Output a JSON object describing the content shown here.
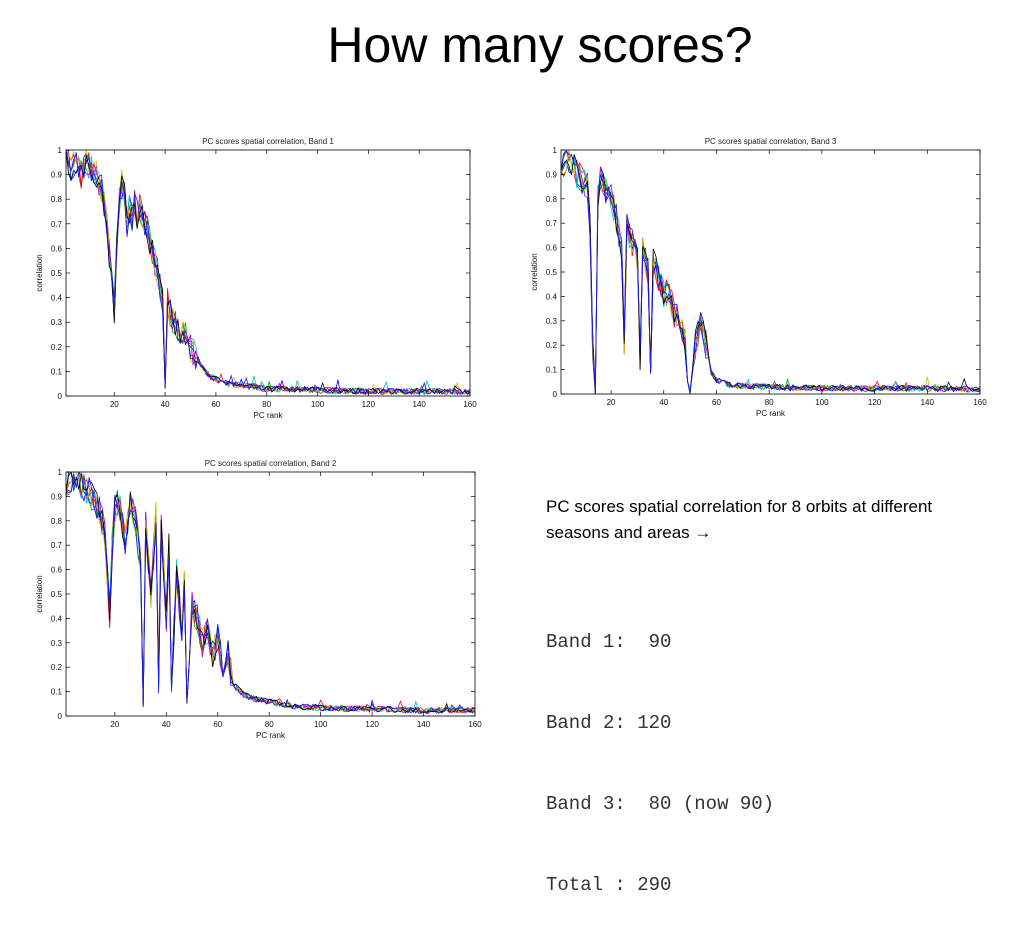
{
  "slide": {
    "title": "How many scores?",
    "caption": "PC scores spatial correlation for 8 orbits at different seasons and areas",
    "caption_arrow": "→",
    "bands": [
      {
        "label": "Band 1",
        "value": " 90",
        "note": ""
      },
      {
        "label": "Band 2",
        "value": "120",
        "note": ""
      },
      {
        "label": "Band 3",
        "value": " 80",
        "note": "(now 90)"
      },
      {
        "label": "Total ",
        "value": "290",
        "note": ""
      }
    ]
  },
  "chart_data": [
    {
      "type": "line",
      "title": "PC scores spatial correlation, Band 1",
      "xlabel": "PC rank",
      "ylabel": "correlation",
      "xlim": [
        1,
        160
      ],
      "ylim": [
        0,
        1
      ],
      "xticks": [
        20,
        40,
        60,
        80,
        100,
        120,
        140,
        160
      ],
      "yticks": [
        0,
        0.1,
        0.2,
        0.3,
        0.4,
        0.5,
        0.6,
        0.7,
        0.8,
        0.9,
        1
      ],
      "series_count": 8,
      "series_colors": [
        "#0000ff",
        "#00a000",
        "#ff0000",
        "#00bfbf",
        "#bf00bf",
        "#bfbf00",
        "#000000",
        "#1a1aff"
      ],
      "reference": {
        "x": [
          1,
          3,
          5,
          7,
          9,
          11,
          13,
          15,
          17,
          18,
          19,
          20,
          21,
          22,
          23,
          24,
          25,
          26,
          27,
          28,
          29,
          30,
          31,
          32,
          33,
          34,
          35,
          36,
          37,
          38,
          39,
          40,
          41,
          42,
          44,
          46,
          48,
          50,
          52,
          54,
          56,
          58,
          60,
          62,
          65,
          70,
          75,
          80,
          90,
          100,
          120,
          140,
          160
        ],
        "y": [
          0.98,
          0.93,
          0.95,
          0.9,
          0.95,
          0.93,
          0.9,
          0.84,
          0.7,
          0.58,
          0.5,
          0.35,
          0.62,
          0.8,
          0.86,
          0.84,
          0.7,
          0.76,
          0.72,
          0.79,
          0.74,
          0.77,
          0.73,
          0.71,
          0.68,
          0.63,
          0.58,
          0.54,
          0.5,
          0.45,
          0.4,
          0.03,
          0.38,
          0.33,
          0.3,
          0.27,
          0.24,
          0.2,
          0.16,
          0.12,
          0.09,
          0.07,
          0.06,
          0.05,
          0.04,
          0.035,
          0.03,
          0.02,
          0.02,
          0.015,
          0.01,
          0.01,
          0.01
        ]
      }
    },
    {
      "type": "line",
      "title": "PC scores spatial correlation, Band 2",
      "xlabel": "PC rank",
      "ylabel": "correlation",
      "xlim": [
        1,
        160
      ],
      "ylim": [
        0,
        1
      ],
      "xticks": [
        20,
        40,
        60,
        80,
        100,
        120,
        140,
        160
      ],
      "yticks": [
        0,
        0.1,
        0.2,
        0.3,
        0.4,
        0.5,
        0.6,
        0.7,
        0.8,
        0.9,
        1
      ],
      "series_count": 8,
      "series_colors": [
        "#0000ff",
        "#00a000",
        "#ff0000",
        "#00bfbf",
        "#bf00bf",
        "#bfbf00",
        "#000000",
        "#1a1aff"
      ],
      "reference": {
        "x": [
          1,
          4,
          7,
          10,
          12,
          14,
          16,
          17,
          18,
          19,
          20,
          21,
          22,
          24,
          26,
          28,
          30,
          31,
          32,
          34,
          36,
          37,
          38,
          40,
          41,
          42,
          44,
          46,
          47,
          48,
          50,
          52,
          54,
          56,
          58,
          60,
          62,
          64,
          66,
          70,
          75,
          80,
          85,
          90,
          100,
          120,
          140,
          160
        ],
        "y": [
          0.96,
          0.97,
          0.95,
          0.92,
          0.88,
          0.84,
          0.76,
          0.6,
          0.42,
          0.7,
          0.85,
          0.88,
          0.86,
          0.72,
          0.88,
          0.8,
          0.62,
          0.04,
          0.78,
          0.5,
          0.82,
          0.15,
          0.78,
          0.4,
          0.7,
          0.1,
          0.6,
          0.35,
          0.55,
          0.05,
          0.45,
          0.4,
          0.3,
          0.35,
          0.25,
          0.32,
          0.2,
          0.25,
          0.12,
          0.08,
          0.06,
          0.05,
          0.04,
          0.03,
          0.025,
          0.02,
          0.015,
          0.015
        ]
      }
    },
    {
      "type": "line",
      "title": "PC scores spatial correlation, Band 3",
      "xlabel": "PC rank",
      "ylabel": "correlation",
      "xlim": [
        1,
        160
      ],
      "ylim": [
        0,
        1
      ],
      "xticks": [
        20,
        40,
        60,
        80,
        100,
        120,
        140,
        160
      ],
      "yticks": [
        0,
        0.1,
        0.2,
        0.3,
        0.4,
        0.5,
        0.6,
        0.7,
        0.8,
        0.9,
        1
      ],
      "series_count": 8,
      "series_colors": [
        "#0000ff",
        "#00a000",
        "#ff0000",
        "#00bfbf",
        "#bf00bf",
        "#bfbf00",
        "#000000",
        "#1a1aff"
      ],
      "reference": {
        "x": [
          1,
          3,
          5,
          7,
          9,
          11,
          12,
          13,
          14,
          15,
          16,
          18,
          20,
          22,
          24,
          25,
          26,
          28,
          30,
          31,
          32,
          34,
          35,
          36,
          38,
          40,
          42,
          44,
          46,
          48,
          49,
          50,
          52,
          54,
          56,
          58,
          60,
          62,
          65,
          70,
          80,
          100,
          120,
          140,
          160
        ],
        "y": [
          0.92,
          0.96,
          0.95,
          0.9,
          0.88,
          0.85,
          0.7,
          0.2,
          0.0,
          0.8,
          0.88,
          0.84,
          0.8,
          0.72,
          0.6,
          0.2,
          0.68,
          0.62,
          0.55,
          0.15,
          0.6,
          0.5,
          0.08,
          0.55,
          0.48,
          0.4,
          0.42,
          0.33,
          0.3,
          0.22,
          0.05,
          0.0,
          0.2,
          0.28,
          0.2,
          0.08,
          0.05,
          0.04,
          0.03,
          0.025,
          0.02,
          0.015,
          0.015,
          0.015,
          0.01
        ]
      }
    }
  ]
}
